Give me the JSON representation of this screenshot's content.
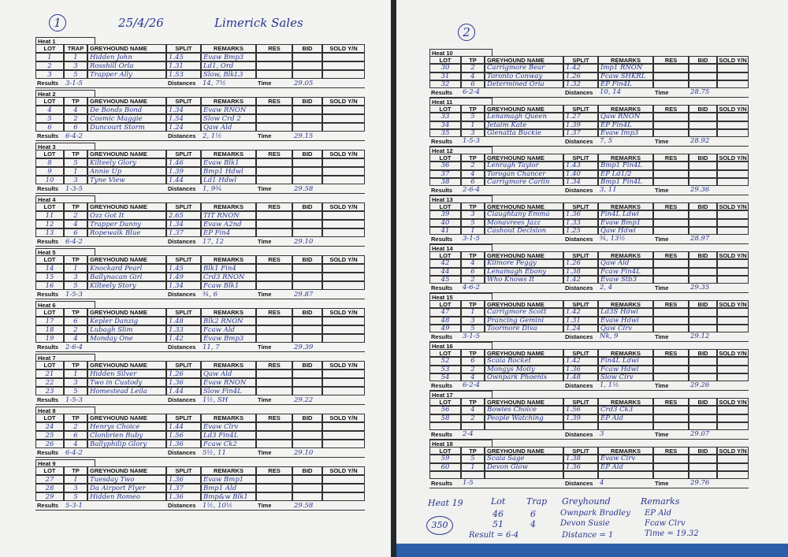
{
  "pages": [
    {
      "number": "1",
      "date": "25/4/26",
      "title": "Limerick Sales",
      "columns": [
        "LOT",
        "TP",
        "GREYHOUND NAME",
        "SPLIT",
        "REMARKS",
        "RES",
        "BID",
        "SOLD Y/N"
      ],
      "footer": [
        "Results",
        "Distances",
        "Time"
      ],
      "heats": [
        {
          "heat": "Heat 1",
          "columns": [
            "LOT",
            "TRAP",
            "GREYHOUND NAME",
            "SPLIT",
            "REMARKS",
            "RES",
            "BID",
            "SOLD Y/N"
          ],
          "rows": [
            [
              "1",
              "1",
              "Hidden John",
              "1.45",
              "Evaw Bmp3"
            ],
            [
              "2",
              "3",
              "Rosshill Orla",
              "1.31",
              "Ld1, Ord"
            ],
            [
              "3",
              "5",
              "Trapper Ally",
              "1.53",
              "Slow, BlkL3"
            ]
          ],
          "result": "3-1-5",
          "distances": "14, 7½",
          "time": "29.05"
        },
        {
          "heat": "Heat 2",
          "rows": [
            [
              "4",
              "4",
              "De Bonds Bond",
              "1.34",
              "Evaw RNON"
            ],
            [
              "5",
              "2",
              "Cosmic Maggie",
              "1.54",
              "Slow Crd 2"
            ],
            [
              "6",
              "6",
              "Duncourt Storm",
              "1.24",
              "Qaw Ald"
            ]
          ],
          "result": "6-4-2",
          "distances": "2, 1½",
          "time": "29.15"
        },
        {
          "heat": "Heat 3",
          "rows": [
            [
              "8",
              "5",
              "Kilteely Glory",
              "1.46",
              "Evaw Blk1"
            ],
            [
              "9",
              "1",
              "Annie Up",
              "1.39",
              "Bmp1 Hdwl"
            ],
            [
              "10",
              "3",
              "Tyne View",
              "1.44",
              "Ld1 Hdwl"
            ]
          ],
          "result": "1-3-5",
          "distances": "1, 9¾",
          "time": "29.58"
        },
        {
          "heat": "Heat 4",
          "rows": [
            [
              "11",
              "2",
              "Ozz Got It",
              "2.65",
              "TIT RNON"
            ],
            [
              "12",
              "4",
              "Trapper Danny",
              "1.34",
              "Evaw A2nd"
            ],
            [
              "13",
              "6",
              "Ropewalk Blue",
              "1.37",
              "EP Fin4"
            ]
          ],
          "result": "6-4-2",
          "distances": "17, 12",
          "time": "29.10"
        },
        {
          "heat": "Heat 5",
          "rows": [
            [
              "14",
              "1",
              "Knockard Pearl",
              "1.45",
              "Blk1 Fin4"
            ],
            [
              "15",
              "3",
              "Ballynacan Girl",
              "1.49",
              "Crd3 RNON"
            ],
            [
              "16",
              "5",
              "Kilteely Story",
              "1.34",
              "Fcaw Blk1"
            ]
          ],
          "result": "1-5-3",
          "distances": "¾, 6",
          "time": "29.87"
        },
        {
          "heat": "Heat 6",
          "rows": [
            [
              "17",
              "6",
              "Kepler Danzig",
              "1.48",
              "Blk2 RNON"
            ],
            [
              "18",
              "2",
              "Lubagh Slim",
              "1.33",
              "Fcaw Ald"
            ],
            [
              "19",
              "4",
              "Monday One",
              "1.42",
              "Evaw Bmp3"
            ]
          ],
          "result": "2-6-4",
          "distances": "11, 7",
          "time": "29.39"
        },
        {
          "heat": "Heat 7",
          "rows": [
            [
              "21",
              "1",
              "Hidden Silver",
              "1.26",
              "Qaw Ald"
            ],
            [
              "22",
              "3",
              "Two in Custody",
              "1.36",
              "Evaw RNON"
            ],
            [
              "23",
              "5",
              "Homestead Leila",
              "1.44",
              "Slow Fin4L"
            ]
          ],
          "result": "1-5-3",
          "distances": "1½, SH",
          "time": "29.22"
        },
        {
          "heat": "Heat 8",
          "rows": [
            [
              "24",
              "2",
              "Henrys Choice",
              "1.44",
              "Evaw Clrv"
            ],
            [
              "25",
              "6",
              "Clonbrien Ruby",
              "1.56",
              "Ld3 Fin4L"
            ],
            [
              "26",
              "4",
              "Ballyphilip Glory",
              "1.36",
              "Fcaw Ck2"
            ]
          ],
          "result": "6-4-2",
          "distances": "5½, 11",
          "time": "29.10"
        },
        {
          "heat": "Heat 9",
          "rows": [
            [
              "27",
              "1",
              "Tuesday Two",
              "1.36",
              "Evaw Bmp1"
            ],
            [
              "28",
              "3",
              "Da Airport Flyer",
              "1.37",
              "Bmp1 Ald"
            ],
            [
              "29",
              "5",
              "Hidden Romeo",
              "1.36",
              "Bmp&w Blk1"
            ]
          ],
          "result": "5-3-1",
          "distances": "1½, 10½",
          "time": "29.58"
        }
      ]
    },
    {
      "number": "2",
      "columns": [
        "LOT",
        "TP",
        "GREYHOUND NAME",
        "SPLIT",
        "REMARKS",
        "RES",
        "BID",
        "SOLD Y/N"
      ],
      "footer": [
        "Results",
        "Distances",
        "Time"
      ],
      "heats": [
        {
          "heat": "Heat 10",
          "rows": [
            [
              "30",
              "2",
              "Carrigmore Bear",
              "1.42",
              "Imp1 RNON"
            ],
            [
              "31",
              "4",
              "Toronto Conway",
              "1.26",
              "Fcaw SHKRL"
            ],
            [
              "32",
              "6",
              "Determined Orla",
              "1.32",
              "EP Fin4L"
            ]
          ],
          "result": "6-2-4",
          "distances": "10, 14",
          "time": "28.75"
        },
        {
          "heat": "Heat 11",
          "rows": [
            [
              "33",
              "5",
              "Lenamagh Queen",
              "1.27",
              "Qaw RNON"
            ],
            [
              "34",
              "1",
              "Jetaim Kate",
              "1.39",
              "EP Fin4L"
            ],
            [
              "35",
              "3",
              "Glenatta Buckie",
              "1.37",
              "Evaw Imp3"
            ]
          ],
          "result": "1-5-3",
          "distances": "7, 5",
          "time": "28.92"
        },
        {
          "heat": "Heat 12",
          "rows": [
            [
              "36",
              "2",
              "Lenragh Taylor",
              "1.43",
              "Bmp1 Fin4L"
            ],
            [
              "37",
              "4",
              "Torogan Chancer",
              "1.40",
              "EP Ld1/2"
            ],
            [
              "38",
              "6",
              "Carrigmore Carlin",
              "1.34",
              "Bmp1 Fin4L"
            ]
          ],
          "result": "2-6-4",
          "distances": "3, 11",
          "time": "29.36"
        },
        {
          "heat": "Heat 13",
          "rows": [
            [
              "39",
              "3",
              "Claughtany Emma",
              "1.36",
              "Fin4L Ldwl"
            ],
            [
              "40",
              "5",
              "Monavrees Jazz",
              "1.33",
              "Evaw Bmp1"
            ],
            [
              "41",
              "1",
              "Cashout Decision",
              "1.25",
              "Qaw Hdwl"
            ]
          ],
          "result": "3-1-5",
          "distances": "¾, 13½",
          "time": "28.97"
        },
        {
          "heat": "Heat 14",
          "rows": [
            [
              "42",
              "4",
              "Kilmore Peggy",
              "1.26",
              "Qaw Ald"
            ],
            [
              "44",
              "6",
              "Lenamagh Ebony",
              "1.38",
              "Fcaw Fin4L"
            ],
            [
              "45",
              "2",
              "Who Knows It",
              "1.42",
              "Evaw Stb3"
            ]
          ],
          "result": "4-6-2",
          "distances": "2, 4",
          "time": "29.35"
        },
        {
          "heat": "Heat 15",
          "rows": [
            [
              "47",
              "1",
              "Carrigmore Scott",
              "1.42",
              "Ld3S Hdwl"
            ],
            [
              "48",
              "3",
              "Prancing Gemini",
              "1.31",
              "Evaw Hdwl"
            ],
            [
              "49",
              "5",
              "Toormore Diva",
              "1.24",
              "Qaw Clrv"
            ]
          ],
          "result": "3-1-5",
          "distances": "Nk, 9",
          "time": "29.12"
        },
        {
          "heat": "Heat 16",
          "rows": [
            [
              "52",
              "6",
              "Scala Rocket",
              "1.42",
              "Fin4L Ldwl"
            ],
            [
              "53",
              "2",
              "Mongys Molly",
              "1.36",
              "Fcaw Hdwl"
            ],
            [
              "54",
              "4",
              "Ownpark Phoenix",
              "1.48",
              "Slow Clrv"
            ]
          ],
          "result": "6-2-4",
          "distances": "1, 1½",
          "time": "29.26"
        },
        {
          "heat": "Heat 17",
          "rows": [
            [
              "56",
              "4",
              "Bowies Choice",
              "1.56",
              "Crd3 Ck3"
            ],
            [
              "58",
              "2",
              "People Watching",
              "1.39",
              "EP Ald"
            ]
          ],
          "result": "2-4",
          "distances": "3",
          "time": "29.07"
        },
        {
          "heat": "Heat 18",
          "rows": [
            [
              "59",
              "5",
              "Scala Sage",
              "1.38",
              "Evaw Clrv"
            ],
            [
              "60",
              "1",
              "Devon Glow",
              "1.36",
              "EP Ald"
            ]
          ],
          "result": "1-5",
          "distances": "4",
          "time": "29.76"
        }
      ],
      "notes": {
        "heat": "Heat 19",
        "lot_label": "Lot",
        "lots": [
          "46",
          "51"
        ],
        "trap_label": "Trap",
        "traps": [
          "6",
          "4"
        ],
        "greyhound_label": "Greyhound",
        "greyhounds": [
          "Ownpark Bradley",
          "Devon Susie"
        ],
        "remarks_label": "Remarks",
        "remarks": [
          "EP Ald",
          "Fcaw Clrv"
        ],
        "result": "Result = 6-4",
        "distance": "Distance = 1",
        "time": "Time = 19.32",
        "circled": "350"
      }
    }
  ]
}
